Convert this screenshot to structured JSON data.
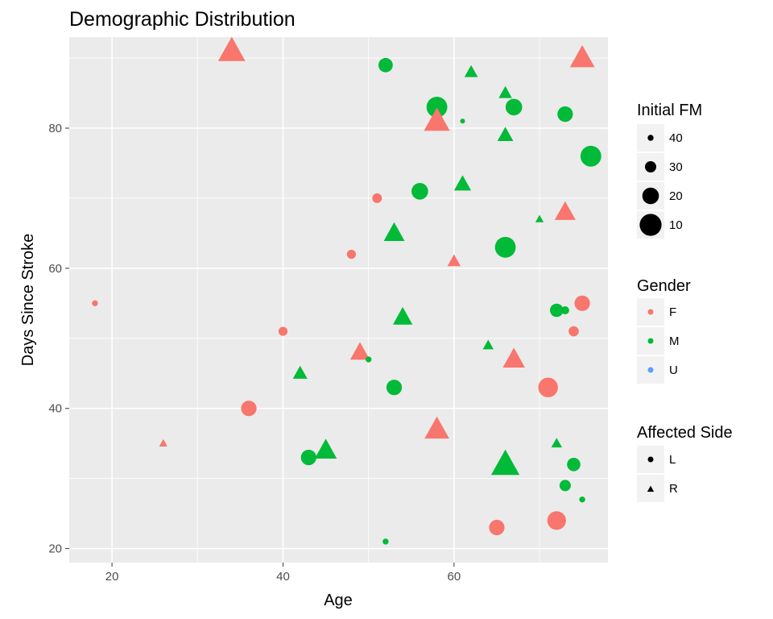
{
  "chart_data": {
    "type": "scatter",
    "title": "Demographic Distribution",
    "xlabel": "Age",
    "ylabel": "Days Since Stroke",
    "xlim": [
      15,
      78
    ],
    "ylim": [
      18,
      93
    ],
    "x_ticks": [
      20,
      40,
      60
    ],
    "y_ticks": [
      20,
      40,
      60,
      80
    ],
    "grid": true,
    "legend_position": "right",
    "colors": {
      "F": "#F8766D",
      "M": "#00BA38",
      "U": "#619CFF"
    },
    "legends": {
      "size": {
        "title": "Initial FM",
        "entries": [
          40,
          30,
          20,
          10
        ]
      },
      "color": {
        "title": "Gender",
        "entries": [
          "F",
          "M",
          "U"
        ]
      },
      "shape": {
        "title": "Affected Side",
        "entries": [
          "L",
          "R"
        ]
      }
    },
    "points": [
      {
        "age": 34,
        "days": 91,
        "gender": "F",
        "side": "R",
        "fm": 8
      },
      {
        "age": 75,
        "days": 90,
        "gender": "F",
        "side": "R",
        "fm": 12
      },
      {
        "age": 52,
        "days": 89,
        "gender": "M",
        "side": "L",
        "fm": 24
      },
      {
        "age": 62,
        "days": 88,
        "gender": "M",
        "side": "R",
        "fm": 30
      },
      {
        "age": 66,
        "days": 85,
        "gender": "M",
        "side": "R",
        "fm": 30
      },
      {
        "age": 58,
        "days": 83,
        "gender": "M",
        "side": "L",
        "fm": 12
      },
      {
        "age": 67,
        "days": 83,
        "gender": "M",
        "side": "L",
        "fm": 20
      },
      {
        "age": 73,
        "days": 82,
        "gender": "M",
        "side": "L",
        "fm": 22
      },
      {
        "age": 58,
        "days": 81,
        "gender": "F",
        "side": "R",
        "fm": 10
      },
      {
        "age": 61,
        "days": 81,
        "gender": "M",
        "side": "L",
        "fm": 42
      },
      {
        "age": 66,
        "days": 79,
        "gender": "M",
        "side": "R",
        "fm": 26
      },
      {
        "age": 76,
        "days": 76,
        "gender": "M",
        "side": "L",
        "fm": 12
      },
      {
        "age": 61,
        "days": 72,
        "gender": "M",
        "side": "R",
        "fm": 24
      },
      {
        "age": 56,
        "days": 71,
        "gender": "M",
        "side": "L",
        "fm": 20
      },
      {
        "age": 51,
        "days": 70,
        "gender": "F",
        "side": "L",
        "fm": 33
      },
      {
        "age": 73,
        "days": 68,
        "gender": "F",
        "side": "R",
        "fm": 18
      },
      {
        "age": 70,
        "days": 67,
        "gender": "M",
        "side": "R",
        "fm": 38
      },
      {
        "age": 53,
        "days": 65,
        "gender": "M",
        "side": "R",
        "fm": 18
      },
      {
        "age": 66,
        "days": 63,
        "gender": "M",
        "side": "L",
        "fm": 12
      },
      {
        "age": 48,
        "days": 62,
        "gender": "F",
        "side": "L",
        "fm": 34
      },
      {
        "age": 60,
        "days": 61,
        "gender": "F",
        "side": "R",
        "fm": 30
      },
      {
        "age": 18,
        "days": 55,
        "gender": "F",
        "side": "L",
        "fm": 40
      },
      {
        "age": 75,
        "days": 55,
        "gender": "F",
        "side": "L",
        "fm": 22
      },
      {
        "age": 72,
        "days": 54,
        "gender": "M",
        "side": "L",
        "fm": 26
      },
      {
        "age": 73,
        "days": 54,
        "gender": "M",
        "side": "L",
        "fm": 36
      },
      {
        "age": 54,
        "days": 53,
        "gender": "M",
        "side": "R",
        "fm": 20
      },
      {
        "age": 40,
        "days": 51,
        "gender": "F",
        "side": "L",
        "fm": 34
      },
      {
        "age": 74,
        "days": 51,
        "gender": "F",
        "side": "L",
        "fm": 32
      },
      {
        "age": 64,
        "days": 49,
        "gender": "M",
        "side": "R",
        "fm": 34
      },
      {
        "age": 49,
        "days": 48,
        "gender": "F",
        "side": "R",
        "fm": 20
      },
      {
        "age": 67,
        "days": 47,
        "gender": "F",
        "side": "R",
        "fm": 16
      },
      {
        "age": 50,
        "days": 47,
        "gender": "M",
        "side": "L",
        "fm": 40
      },
      {
        "age": 42,
        "days": 45,
        "gender": "M",
        "side": "R",
        "fm": 28
      },
      {
        "age": 53,
        "days": 43,
        "gender": "M",
        "side": "L",
        "fm": 22
      },
      {
        "age": 71,
        "days": 43,
        "gender": "F",
        "side": "L",
        "fm": 14
      },
      {
        "age": 36,
        "days": 40,
        "gender": "F",
        "side": "L",
        "fm": 22
      },
      {
        "age": 58,
        "days": 37,
        "gender": "F",
        "side": "R",
        "fm": 12
      },
      {
        "age": 26,
        "days": 35,
        "gender": "F",
        "side": "R",
        "fm": 38
      },
      {
        "age": 72,
        "days": 35,
        "gender": "M",
        "side": "R",
        "fm": 34
      },
      {
        "age": 45,
        "days": 34,
        "gender": "M",
        "side": "R",
        "fm": 16
      },
      {
        "age": 43,
        "days": 33,
        "gender": "M",
        "side": "L",
        "fm": 22
      },
      {
        "age": 66,
        "days": 32,
        "gender": "M",
        "side": "R",
        "fm": 6
      },
      {
        "age": 74,
        "days": 32,
        "gender": "M",
        "side": "L",
        "fm": 26
      },
      {
        "age": 73,
        "days": 29,
        "gender": "M",
        "side": "L",
        "fm": 30
      },
      {
        "age": 75,
        "days": 27,
        "gender": "M",
        "side": "L",
        "fm": 40
      },
      {
        "age": 72,
        "days": 24,
        "gender": "F",
        "side": "L",
        "fm": 16
      },
      {
        "age": 65,
        "days": 23,
        "gender": "F",
        "side": "L",
        "fm": 22
      },
      {
        "age": 52,
        "days": 21,
        "gender": "M",
        "side": "L",
        "fm": 40
      }
    ]
  }
}
